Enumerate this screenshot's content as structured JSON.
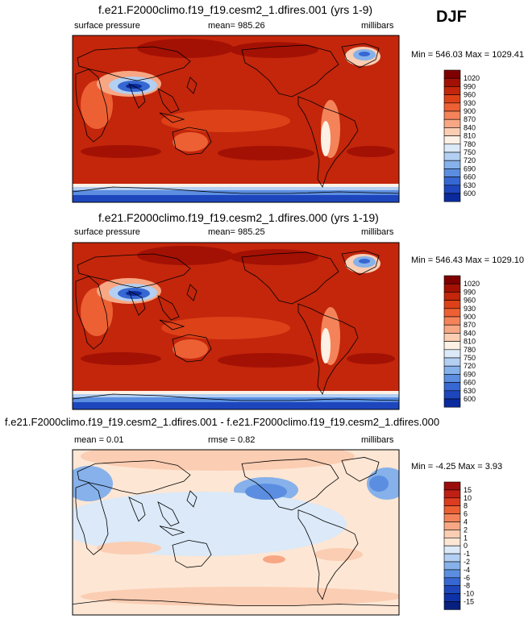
{
  "season": "DJF",
  "panels": [
    {
      "title": "f.e21.F2000climo.f19_f19.cesm2_1.dfires.001 (yrs 1-9)",
      "left_label": "surface pressure",
      "center_label": "mean= 985.26",
      "right_label": "millibars",
      "minmax": "Min = 546.03 Max = 1029.41"
    },
    {
      "title": "f.e21.F2000climo.f19_f19.cesm2_1.dfires.000 (yrs 1-19)",
      "left_label": "surface pressure",
      "center_label": "mean= 985.25",
      "right_label": "millibars",
      "minmax": "Min = 546.43 Max = 1029.10"
    },
    {
      "title": "f.e21.F2000climo.f19_f19.cesm2_1.dfires.001 - f.e21.F2000climo.f19_f19.cesm2_1.dfires.000",
      "left_label": "mean =   0.01",
      "center_label": "rmse =   0.82",
      "right_label": "millibars",
      "minmax": "Min =  -4.25 Max =  3.93"
    }
  ],
  "colorbars": {
    "absolute": {
      "labels": [
        "1020",
        "990",
        "960",
        "930",
        "900",
        "870",
        "840",
        "810",
        "780",
        "750",
        "720",
        "690",
        "660",
        "630",
        "600"
      ],
      "colors": [
        "#7f0000",
        "#a31104",
        "#c3260b",
        "#dd4118",
        "#ec6034",
        "#f4835a",
        "#f8a784",
        "#fbcdb2",
        "#fdf0e4",
        "#dbe9f8",
        "#b3cff2",
        "#86b1ea",
        "#5b8ee0",
        "#3667d2",
        "#1d46bd",
        "#0a2a9e"
      ]
    },
    "difference": {
      "labels": [
        "15",
        "10",
        "8",
        "6",
        "4",
        "2",
        "1",
        "0",
        "-1",
        "-2",
        "-4",
        "-6",
        "-8",
        "-10",
        "-15"
      ],
      "colors": [
        "#9b0c0c",
        "#c01f14",
        "#dc3c1f",
        "#ec6034",
        "#f4835a",
        "#f8a784",
        "#fbcdb2",
        "#fde6d4",
        "#dbe9f8",
        "#b3cff2",
        "#86b1ea",
        "#5b8ee0",
        "#3667d2",
        "#1d46bd",
        "#0d32a8",
        "#071f7e"
      ]
    }
  }
}
